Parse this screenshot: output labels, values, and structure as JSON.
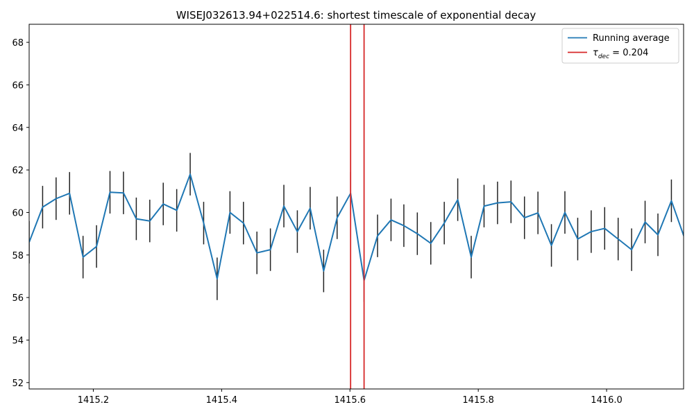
{
  "chart_data": {
    "type": "line",
    "title": "WISEJ032613.94+022514.6: shortest timescale of exponential decay",
    "xlabel": "",
    "ylabel": "",
    "xlim": [
      1415.1,
      1416.12
    ],
    "ylim": [
      51.7,
      68.85
    ],
    "xticks": [
      1415.2,
      1415.4,
      1415.6,
      1415.8,
      1416.0
    ],
    "xtick_labels": [
      "1415.2",
      "1415.4",
      "1415.6",
      "1415.8",
      "1416.0"
    ],
    "yticks": [
      52,
      54,
      56,
      58,
      60,
      62,
      64,
      66,
      68
    ],
    "ytick_labels": [
      "52",
      "54",
      "56",
      "58",
      "60",
      "62",
      "64",
      "66",
      "68"
    ],
    "grid": false,
    "legend_position": "top-right",
    "series": [
      {
        "name": "Running average",
        "color": "#1f77b4",
        "x": [
          1415.1,
          1415.121,
          1415.142,
          1415.163,
          1415.184,
          1415.205,
          1415.226,
          1415.247,
          1415.267,
          1415.288,
          1415.309,
          1415.33,
          1415.351,
          1415.372,
          1415.393,
          1415.413,
          1415.434,
          1415.455,
          1415.476,
          1415.497,
          1415.518,
          1415.538,
          1415.559,
          1415.58,
          1415.601,
          1415.622,
          1415.643,
          1415.664,
          1415.684,
          1415.705,
          1415.726,
          1415.747,
          1415.768,
          1415.789,
          1415.809,
          1415.83,
          1415.851,
          1415.872,
          1415.893,
          1415.914,
          1415.935,
          1415.955,
          1415.976,
          1415.997,
          1416.018,
          1416.039,
          1416.06,
          1416.08,
          1416.101,
          1416.122
        ],
        "y": [
          58.6,
          60.25,
          60.65,
          60.9,
          57.9,
          58.4,
          60.95,
          60.92,
          59.7,
          59.6,
          60.4,
          60.1,
          61.8,
          59.5,
          56.88,
          60.0,
          59.5,
          58.1,
          58.25,
          60.3,
          59.1,
          60.2,
          57.25,
          59.75,
          60.9,
          56.8,
          58.9,
          59.65,
          59.38,
          59.0,
          58.55,
          59.5,
          60.6,
          57.9,
          60.3,
          60.45,
          60.5,
          59.75,
          59.98,
          58.45,
          60.0,
          58.75,
          59.1,
          59.25,
          58.75,
          58.25,
          59.55,
          58.95,
          60.55,
          58.75
        ],
        "error": [
          1.0,
          1.0,
          1.0,
          1.0,
          1.0,
          1.0,
          1.0,
          1.0,
          1.0,
          1.0,
          1.0,
          1.0,
          1.0,
          1.0,
          1.0,
          1.0,
          1.0,
          1.0,
          1.0,
          1.0,
          1.0,
          1.0,
          1.0,
          1.0,
          1.0,
          1.0,
          1.0,
          1.0,
          1.0,
          1.0,
          1.0,
          1.0,
          1.0,
          1.0,
          1.0,
          1.0,
          1.0,
          1.0,
          1.0,
          1.0,
          1.0,
          1.0,
          1.0,
          1.0,
          1.0,
          1.0,
          1.0,
          1.0,
          1.0,
          1.0
        ]
      }
    ],
    "vlines": [
      {
        "x": 1415.601,
        "color": "#d62728"
      },
      {
        "x": 1415.622,
        "color": "#d62728"
      }
    ],
    "legend": [
      {
        "label": "Running average",
        "color": "#1f77b4"
      },
      {
        "label_symbol": "τ",
        "label_sub": "dec",
        "label_rest": " = 0.204",
        "color": "#d62728"
      }
    ]
  }
}
